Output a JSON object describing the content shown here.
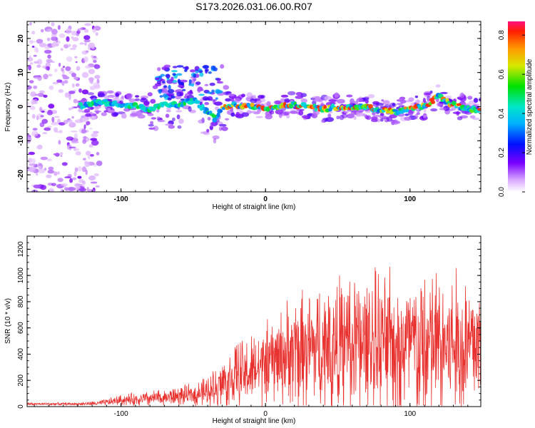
{
  "title": "S173.2026.031.06.00.R07",
  "chart_data": [
    {
      "type": "heatmap",
      "description_role": "spectrogram",
      "xlabel": "Height of straight line (km)",
      "ylabel": "Frequency (Hz)",
      "xlim": [
        -165,
        149
      ],
      "ylim": [
        -25,
        25
      ],
      "xticks": [
        -100,
        0,
        100
      ],
      "yticks": [
        -20,
        -10,
        0,
        10,
        20
      ],
      "colorbar": {
        "label": "Normalized spectral amplitude",
        "range": [
          0.0,
          0.87
        ],
        "ticks": [
          0.0,
          0.2,
          0.4,
          0.6,
          0.8
        ]
      },
      "ridge": {
        "x": [
          -128,
          -115,
          -100,
          -90,
          -80,
          -70,
          -60,
          -50,
          -40,
          -35,
          -30,
          -25,
          -20,
          -10,
          0,
          10,
          20,
          30,
          40,
          50,
          60,
          70,
          80,
          90,
          100,
          110,
          115,
          120,
          125,
          130,
          140,
          149
        ],
        "y": [
          0.2,
          1.5,
          0.5,
          0.2,
          -0.8,
          0.5,
          0.5,
          2.0,
          -1.5,
          -3.5,
          -0.5,
          0.5,
          0.3,
          0.0,
          -0.5,
          0.2,
          0.5,
          0.0,
          -0.8,
          0.0,
          -0.2,
          0.0,
          -1.0,
          -1.5,
          -0.5,
          0.0,
          1.5,
          3.5,
          1.5,
          0.5,
          -0.5,
          -1.0
        ],
        "peak_amplitude": 0.85
      },
      "noise_region_x": [
        -165,
        -115
      ]
    },
    {
      "type": "line",
      "xlabel": "Height of straight line (km)",
      "ylabel": "SNR (10 * v/v)",
      "xlim": [
        -165,
        149
      ],
      "ylim": [
        0,
        1300
      ],
      "xticks": [
        -100,
        0,
        100
      ],
      "yticks": [
        0,
        200,
        400,
        600,
        800,
        1000,
        1200
      ],
      "series": [
        {
          "name": "SNR",
          "color": "#e8322f",
          "envelope": {
            "x": [
              -165,
              -130,
              -115,
              -100,
              -80,
              -60,
              -50,
              -40,
              -35,
              -30,
              -20,
              -10,
              0,
              10,
              20,
              30,
              40,
              60,
              80,
              100,
              120,
              140,
              149
            ],
            "base": [
              20,
              20,
              25,
              50,
              60,
              80,
              90,
              110,
              140,
              180,
              230,
              260,
              320,
              380,
              420,
              440,
              450,
              470,
              480,
              460,
              470,
              460,
              480
            ],
            "amplitude": [
              10,
              10,
              20,
              40,
              60,
              70,
              80,
              120,
              160,
              200,
              250,
              280,
              300,
              350,
              420,
              460,
              500,
              520,
              540,
              560,
              580,
              560,
              520
            ]
          }
        }
      ]
    }
  ]
}
